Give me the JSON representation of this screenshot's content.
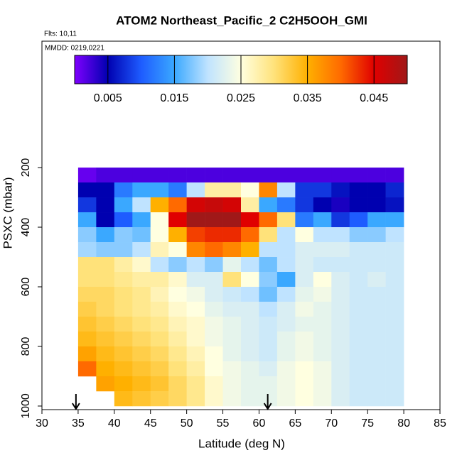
{
  "chart_data": {
    "type": "heatmap",
    "title": "ATOM2 Northeast_Pacific_2 C2H5OOH_GMI",
    "subtitle": "Flts: 10,11",
    "annotation": "MMDD: 0219,0221",
    "xlabel": "Latitude (deg N)",
    "ylabel": "PSXC (mbar)",
    "xlim": [
      30,
      85
    ],
    "xticks": [
      30,
      35,
      40,
      45,
      50,
      55,
      60,
      65,
      70,
      75,
      80,
      85
    ],
    "ylim": [
      1012,
      -224
    ],
    "yticks": [
      200,
      400,
      600,
      800,
      1000
    ],
    "x_edges": [
      35,
      37.5,
      40,
      42.5,
      45,
      47.5,
      50,
      52.5,
      55,
      57.5,
      60,
      62.5,
      65,
      67.5,
      70,
      72.5,
      75,
      77.5,
      80
    ],
    "y_edges": [
      200,
      250,
      300,
      350,
      400,
      450,
      500,
      550,
      600,
      650,
      700,
      750,
      800,
      850,
      900,
      950,
      1000
    ],
    "values": [
      [
        0.001,
        0.002,
        0.002,
        0.002,
        0.002,
        0.002,
        0.002,
        0.002,
        0.002,
        0.002,
        0.002,
        0.002,
        0.002,
        0.002,
        0.002,
        0.002,
        0.002,
        0.002
      ],
      [
        0.005,
        0.005,
        0.012,
        0.015,
        0.015,
        0.012,
        0.02,
        0.028,
        0.028,
        0.025,
        0.038,
        0.02,
        0.008,
        0.008,
        0.006,
        0.005,
        0.005,
        0.007
      ],
      [
        0.008,
        0.005,
        0.015,
        0.02,
        0.035,
        0.04,
        0.046,
        0.047,
        0.046,
        0.028,
        0.015,
        0.012,
        0.008,
        0.005,
        0.004,
        0.005,
        0.005,
        0.006
      ],
      [
        0.015,
        0.005,
        0.01,
        0.015,
        0.025,
        0.045,
        0.05,
        0.05,
        0.05,
        0.045,
        0.04,
        0.03,
        0.012,
        0.015,
        0.008,
        0.01,
        0.015,
        0.015
      ],
      [
        0.018,
        0.015,
        0.018,
        0.017,
        0.025,
        0.035,
        0.042,
        0.043,
        0.043,
        0.04,
        0.03,
        0.02,
        0.025,
        0.02,
        0.02,
        0.018,
        0.018,
        0.02
      ],
      [
        0.019,
        0.018,
        0.018,
        0.02,
        0.027,
        0.025,
        0.038,
        0.04,
        0.038,
        0.035,
        0.02,
        0.02,
        0.022,
        0.022,
        0.022,
        0.021,
        0.021,
        0.021
      ],
      [
        0.03,
        0.03,
        0.028,
        0.026,
        0.02,
        0.018,
        0.02,
        0.018,
        0.023,
        0.02,
        0.017,
        0.02,
        0.022,
        0.021,
        0.021,
        0.021,
        0.021,
        0.021
      ],
      [
        0.03,
        0.03,
        0.029,
        0.028,
        0.028,
        0.026,
        0.022,
        0.022,
        0.03,
        0.025,
        0.018,
        0.015,
        0.022,
        0.025,
        0.022,
        0.021,
        0.022,
        0.021
      ],
      [
        0.031,
        0.031,
        0.03,
        0.029,
        0.027,
        0.025,
        0.024,
        0.022,
        0.021,
        0.02,
        0.017,
        0.02,
        0.023,
        0.024,
        0.022,
        0.021,
        0.021,
        0.021
      ],
      [
        0.032,
        0.031,
        0.03,
        0.029,
        0.028,
        0.026,
        0.025,
        0.023,
        0.022,
        0.022,
        0.02,
        0.022,
        0.024,
        0.023,
        0.022,
        0.021,
        0.021,
        0.021
      ],
      [
        0.033,
        0.032,
        0.031,
        0.03,
        0.029,
        0.027,
        0.026,
        0.024,
        0.023,
        0.022,
        0.021,
        0.022,
        0.023,
        0.023,
        0.022,
        0.021,
        0.021,
        0.021
      ],
      [
        0.034,
        0.033,
        0.032,
        0.031,
        0.03,
        0.028,
        0.026,
        0.024,
        0.023,
        0.022,
        0.021,
        0.023,
        0.024,
        0.023,
        0.022,
        0.021,
        0.021,
        0.021
      ],
      [
        0.036,
        0.034,
        0.033,
        0.032,
        0.031,
        0.029,
        0.027,
        0.025,
        0.023,
        0.022,
        0.021,
        0.023,
        0.024,
        0.023,
        0.022,
        0.021,
        0.021,
        0.021
      ],
      [
        0.04,
        0.035,
        0.034,
        0.033,
        0.032,
        0.03,
        0.028,
        0.025,
        0.024,
        0.023,
        0.022,
        0.024,
        0.025,
        0.024,
        0.022,
        0.021,
        0.021,
        0.021
      ],
      [
        null,
        0.036,
        0.035,
        0.034,
        0.033,
        0.031,
        0.029,
        0.026,
        0.024,
        0.023,
        0.023,
        0.024,
        0.025,
        0.024,
        0.022,
        0.021,
        0.021,
        0.021
      ],
      [
        null,
        null,
        0.034,
        0.033,
        0.032,
        0.031,
        0.029,
        0.026,
        0.024,
        0.023,
        0.023,
        0.024,
        0.025,
        0.024,
        0.022,
        0.021,
        0.021,
        0.021
      ]
    ],
    "colorbar": {
      "lim": [
        0,
        0.05
      ],
      "ticks": [
        0.005,
        0.015,
        0.025,
        0.035,
        0.045
      ],
      "colors": [
        "#7f00ff",
        "#0000b0",
        "#1e5cff",
        "#3aa8ff",
        "#bfe3ff",
        "#ffffe0",
        "#ffe27a",
        "#ffb000",
        "#ff6a00",
        "#e00000",
        "#a01818"
      ]
    },
    "arrows_x": [
      34.7,
      61.2
    ]
  }
}
